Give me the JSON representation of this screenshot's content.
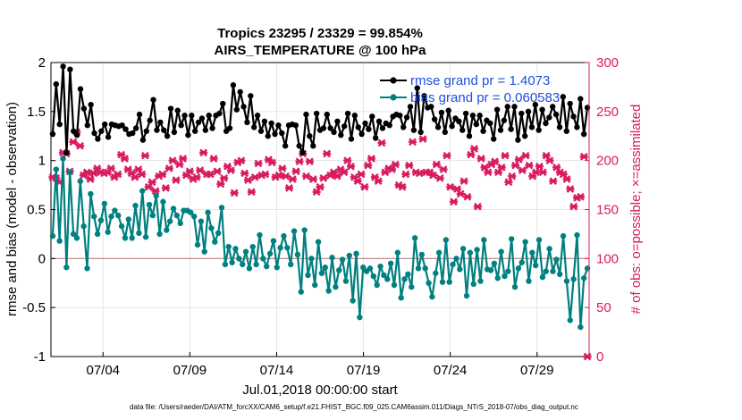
{
  "chart_data": {
    "type": "line",
    "title_line1": "Tropics 23295 / 23329 = 99.854%",
    "title_line2": "AIRS_TEMPERATURE @ 100 hPa",
    "xlabel": "Jul.01,2018 00:00:00 start",
    "ylabel_left": "rmse and bias (model - observation)",
    "ylabel_right": "# of obs: o=possible; ×=assimilated",
    "x_ticks": [
      "07/04",
      "07/09",
      "07/14",
      "07/19",
      "07/24",
      "07/29"
    ],
    "x_tick_days": [
      4,
      9,
      14,
      19,
      24,
      29
    ],
    "xlim_days": [
      1.0,
      32.0
    ],
    "left_axis": {
      "ylim": [
        -1,
        2
      ],
      "ticks": [
        -1,
        -0.5,
        0,
        0.5,
        1,
        1.5,
        2
      ],
      "tick_labels": [
        "-1",
        "-0.5",
        "0",
        "0.5",
        "1",
        "1.5",
        "2"
      ]
    },
    "right_axis": {
      "ylim": [
        0,
        300
      ],
      "ticks": [
        0,
        50,
        100,
        150,
        200,
        250,
        300
      ],
      "tick_labels": [
        "0",
        "50",
        "100",
        "150",
        "200",
        "250",
        "300"
      ]
    },
    "grid": true,
    "legend_position": "top-right",
    "series": [
      {
        "name": "rmse grand pr = 1.4073",
        "axis": "left",
        "color": "#000000",
        "values": [
          1.27,
          1.78,
          1.37,
          1.96,
          1.08,
          1.93,
          1.3,
          1.26,
          1.73,
          1.53,
          1.36,
          1.57,
          1.28,
          1.22,
          1.3,
          1.37,
          1.24,
          1.37,
          1.36,
          1.35,
          1.36,
          1.32,
          1.27,
          1.28,
          1.33,
          1.47,
          1.21,
          1.3,
          1.41,
          1.62,
          1.31,
          1.39,
          1.31,
          1.25,
          1.53,
          1.29,
          1.51,
          1.36,
          1.46,
          1.26,
          1.46,
          1.3,
          1.39,
          1.43,
          1.31,
          1.46,
          1.33,
          1.46,
          1.48,
          1.58,
          1.3,
          1.33,
          1.77,
          1.52,
          1.7,
          1.55,
          1.39,
          1.66,
          1.34,
          1.46,
          1.3,
          1.4,
          1.25,
          1.38,
          1.27,
          1.36,
          1.28,
          1.15,
          1.36,
          1.37,
          1.36,
          1.15,
          1.08,
          1.47,
          1.25,
          1.15,
          1.48,
          1.31,
          1.33,
          1.47,
          1.33,
          1.29,
          1.4,
          1.26,
          1.35,
          1.48,
          1.22,
          1.46,
          1.34,
          1.27,
          1.38,
          1.32,
          1.45,
          1.23,
          1.4,
          1.33,
          1.38,
          1.36,
          1.45,
          1.47,
          1.46,
          1.34,
          1.44,
          1.55,
          1.31,
          1.74,
          1.29,
          1.66,
          1.54,
          1.55,
          1.42,
          1.34,
          1.49,
          1.29,
          1.51,
          1.35,
          1.43,
          1.4,
          1.31,
          1.48,
          1.25,
          1.46,
          1.37,
          1.46,
          1.3,
          1.41,
          1.38,
          1.22,
          1.52,
          1.31,
          1.41,
          1.55,
          1.32,
          1.55,
          1.21,
          1.48,
          1.25,
          1.5,
          1.34,
          1.57,
          1.31,
          1.52,
          1.38,
          1.44,
          1.55,
          1.47,
          1.34,
          1.65,
          1.3,
          1.58,
          1.45,
          1.34,
          1.63,
          1.27,
          1.54
        ]
      },
      {
        "name": "bias grand pr = 0.060583",
        "axis": "left",
        "color": "#008080",
        "values": [
          0.23,
          0.91,
          0.18,
          1.02,
          -0.09,
          0.88,
          0.25,
          0.21,
          0.79,
          0.33,
          -0.1,
          0.66,
          0.43,
          0.25,
          0.39,
          0.56,
          0.27,
          0.43,
          0.49,
          0.44,
          0.33,
          0.21,
          0.4,
          0.21,
          0.54,
          0.26,
          0.69,
          0.22,
          0.55,
          0.44,
          0.64,
          0.25,
          0.58,
          0.29,
          0.38,
          0.51,
          0.44,
          0.36,
          0.49,
          0.49,
          0.47,
          0.43,
          0.14,
          0.38,
          0.07,
          0.47,
          0.31,
          0.17,
          0.26,
          0.52,
          -0.06,
          0.12,
          -0.04,
          0.1,
          0.0,
          -0.06,
          0.07,
          -0.1,
          0.12,
          -0.06,
          0.24,
          0.0,
          -0.08,
          0.05,
          0.18,
          -0.09,
          0.11,
          0.23,
          0.11,
          -0.06,
          0.28,
          0.04,
          -0.34,
          0.29,
          -0.17,
          0.0,
          -0.27,
          0.17,
          -0.15,
          -0.09,
          -0.33,
          0.01,
          -0.29,
          -0.12,
          -0.01,
          -0.23,
          0.03,
          -0.43,
          0.05,
          -0.6,
          -0.09,
          -0.13,
          -0.1,
          -0.18,
          -0.27,
          -0.08,
          -0.17,
          -0.21,
          -0.05,
          -0.27,
          0.06,
          -0.4,
          -0.21,
          -0.16,
          -0.29,
          0.21,
          -0.1,
          0.04,
          -0.1,
          -0.25,
          -0.39,
          -0.15,
          0.06,
          -0.24,
          0.19,
          -0.24,
          -0.06,
          0.0,
          -0.11,
          0.1,
          -0.38,
          0.06,
          -0.26,
          0.09,
          -0.23,
          0.19,
          -0.11,
          -0.12,
          -0.05,
          -0.2,
          0.07,
          -0.18,
          -0.13,
          0.2,
          -0.29,
          -0.1,
          -0.04,
          0.17,
          -0.23,
          0.06,
          -0.07,
          0.19,
          -0.19,
          -0.13,
          0.1,
          -0.13,
          -0.01,
          -0.16,
          0.23,
          -0.23,
          -0.63,
          -0.21,
          0.24,
          -0.7,
          -0.2,
          -0.1
        ]
      },
      {
        "name": "# of obs",
        "axis": "right",
        "type": "scatter",
        "color": "#d81b60",
        "values": [
          183,
          182,
          178,
          208,
          207,
          189,
          219,
          229,
          215,
          185,
          188,
          181,
          187,
          192,
          188,
          187,
          188,
          192,
          183,
          186,
          206,
          202,
          191,
          187,
          183,
          191,
          186,
          205,
          173,
          178,
          169,
          184,
          186,
          172,
          192,
          200,
          180,
          196,
          202,
          185,
          189,
          181,
          183,
          190,
          208,
          186,
          186,
          202,
          189,
          176,
          182,
          194,
          190,
          167,
          198,
          200,
          187,
          180,
          168,
          183,
          197,
          185,
          186,
          201,
          198,
          183,
          185,
          192,
          184,
          172,
          181,
          189,
          199,
          207,
          184,
          199,
          181,
          168,
          173,
          182,
          207,
          185,
          188,
          184,
          191,
          188,
          200,
          194,
          183,
          179,
          186,
          173,
          195,
          202,
          183,
          179,
          218,
          188,
          192,
          191,
          196,
          175,
          173,
          186,
          195,
          219,
          188,
          187,
          222,
          188,
          188,
          185,
          196,
          182,
          191,
          205,
          173,
          158,
          171,
          166,
          179,
          163,
          206,
          212,
          153,
          202,
          193,
          188,
          196,
          199,
          188,
          193,
          205,
          178,
          184,
          195,
          201,
          190,
          205,
          195,
          184,
          188,
          194,
          188,
          205,
          200,
          179,
          193,
          188,
          186,
          181,
          171,
          153,
          162,
          163,
          204,
          0
        ]
      }
    ],
    "footer": "data file: /Users/raeder/DAI/ATM_forcXX/CAM6_setup/f.e21.FHIST_BGC.f09_025.CAM6assim.011/Diags_NTrS_2018-07/obs_diag_output.nc"
  }
}
